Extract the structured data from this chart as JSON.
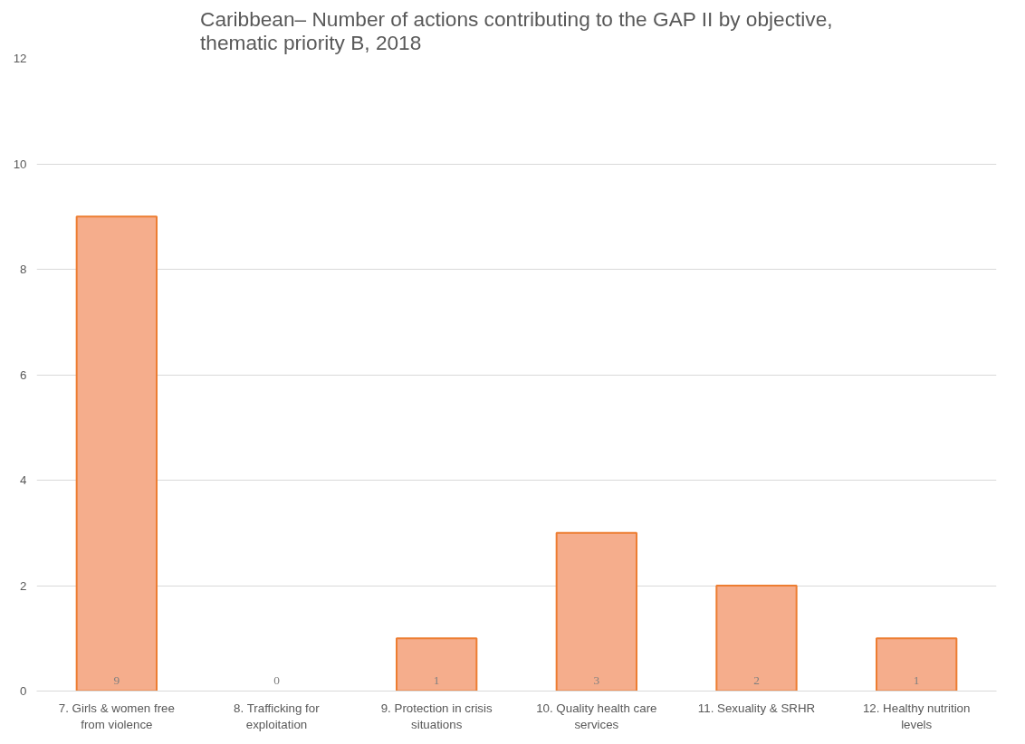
{
  "chart_data": {
    "type": "bar",
    "title": "Caribbean– Number of actions contributing to the GAP II by objective, thematic priority B, 2018",
    "categories": [
      "7. Girls & women free from violence",
      "8. Trafficking for exploitation",
      "9. Protection in crisis situations",
      "10. Quality health care services",
      "11. Sexuality & SRHR",
      "12. Healthy nutrition levels"
    ],
    "values": [
      9,
      0,
      1,
      3,
      2,
      1
    ],
    "color": "#f5ad8c",
    "ylim": [
      0,
      12
    ],
    "yticks": [
      0,
      2,
      4,
      6,
      8,
      10,
      12
    ],
    "grid": "y",
    "data_labels": true
  }
}
